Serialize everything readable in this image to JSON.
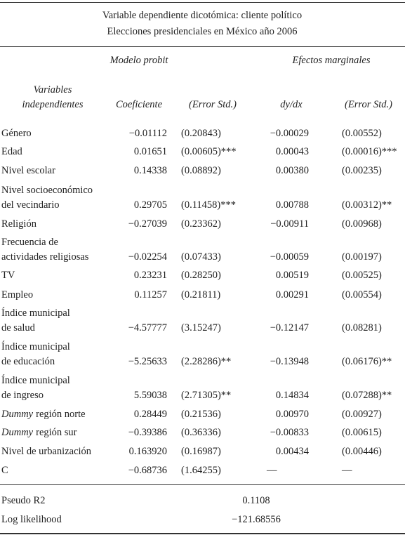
{
  "header": {
    "title": [
      "Variable dependiente dicotómica: cliente político",
      "Elecciones presidenciales en México año 2006"
    ]
  },
  "table": {
    "groups": [
      "Modelo probit",
      "Efectos marginales"
    ],
    "columns": [
      "Variables",
      "independientes",
      "Coeficiente",
      "(Error Std.)",
      "dy/dx",
      "(Error Std.)"
    ],
    "rows": [
      {
        "label": [
          "Género"
        ],
        "cells": [
          "−0.01112",
          "(0.20843)",
          "−0.00029",
          "(0.00552)"
        ]
      },
      {
        "label": [
          "Edad"
        ],
        "cells": [
          "0.01651",
          "(0.00605)***",
          "0.00043",
          "(0.00016)***"
        ]
      },
      {
        "label": [
          "Nivel escolar"
        ],
        "cells": [
          "0.14338",
          "(0.08892)",
          "0.00380",
          "(0.00235)"
        ]
      },
      {
        "label": [
          "Nivel socioeconómico",
          "del vecindario"
        ],
        "cells": [
          "0.29705",
          "(0.11458)***",
          "0.00788",
          "(0.00312)**"
        ]
      },
      {
        "label": [
          "Religión"
        ],
        "cells": [
          "−0.27039",
          "(0.23362)",
          "−0.00911",
          "(0.00968)"
        ]
      },
      {
        "label": [
          "Frecuencia de",
          "actividades religiosas"
        ],
        "cells": [
          "−0.02254",
          "(0.07433)",
          "−0.00059",
          "(0.00197)"
        ]
      },
      {
        "label": [
          "TV"
        ],
        "cells": [
          "0.23231",
          "(0.28250)",
          "0.00519",
          "(0.00525)"
        ]
      },
      {
        "label": [
          "Empleo"
        ],
        "cells": [
          "0.11257",
          "(0.21811)",
          "0.00291",
          "(0.00554)"
        ]
      },
      {
        "label": [
          "Índice municipal",
          "de salud"
        ],
        "cells": [
          "−4.57777",
          "(3.15247)",
          "−0.12147",
          "(0.08281)"
        ]
      },
      {
        "label": [
          "Índice municipal",
          "de educación"
        ],
        "cells": [
          "−5.25633",
          "(2.28286)**",
          "−0.13948",
          "(0.06176)**"
        ]
      },
      {
        "label": [
          "Índice municipal",
          "de ingreso"
        ],
        "cells": [
          "5.59038",
          "(2.71305)**",
          "0.14834",
          "(0.07288)**"
        ]
      },
      {
        "label_italic": "Dummy",
        "label": [
          "región norte"
        ],
        "cells": [
          "0.28449",
          "(0.21536)",
          "0.00970",
          "(0.00927)"
        ]
      },
      {
        "label_italic": "Dummy",
        "label": [
          "región sur"
        ],
        "cells": [
          "−0.39386",
          "(0.36336)",
          "−0.00833",
          "(0.00615)"
        ]
      },
      {
        "label": [
          "Nivel de urbanización"
        ],
        "cells": [
          "0.163920",
          "(0.16987)",
          "0.00434",
          "(0.00446)"
        ]
      },
      {
        "label": [
          "C"
        ],
        "cells": [
          "−0.68736",
          "(1.64255)",
          "—",
          "—"
        ]
      }
    ],
    "footer": [
      {
        "label": "Pseudo R2",
        "value": "0.1108"
      },
      {
        "label": "Log likelihood",
        "value": "−121.68556"
      }
    ]
  }
}
